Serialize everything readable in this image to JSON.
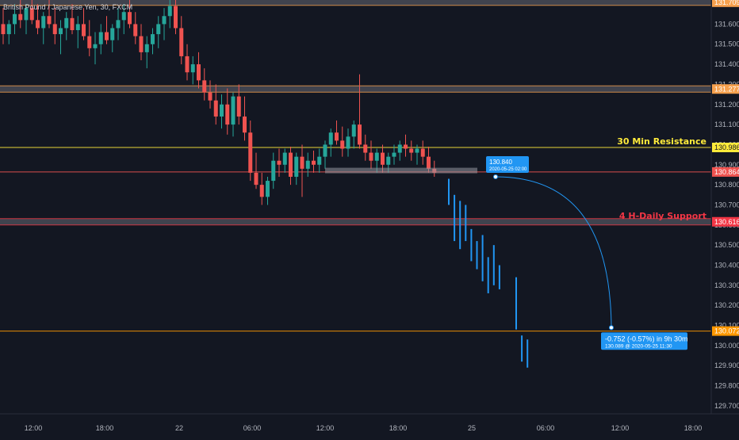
{
  "chart_data": {
    "type": "candlestick",
    "title": "British Pound / Japanese Yen, 30, FXCM",
    "ylim": [
      129.66,
      131.72
    ],
    "y_ticks": [
      "131.600",
      "131.500",
      "131.400",
      "131.300",
      "131.200",
      "131.100",
      "131.000",
      "130.900",
      "130.800",
      "130.700",
      "130.600",
      "130.500",
      "130.400",
      "130.300",
      "130.200",
      "130.100",
      "130.000",
      "129.900",
      "129.800",
      "129.700"
    ],
    "x_ticks": [
      "12:00",
      "18:00",
      "22",
      "06:00",
      "12:00",
      "18:00",
      "25",
      "06:00",
      "12:00",
      "18:00"
    ],
    "grid": false,
    "candles": [
      [
        131.6,
        131.68,
        131.5,
        131.55
      ],
      [
        131.55,
        131.62,
        131.5,
        131.6
      ],
      [
        131.6,
        131.7,
        131.55,
        131.65
      ],
      [
        131.65,
        131.72,
        131.58,
        131.62
      ],
      [
        131.62,
        131.7,
        131.55,
        131.68
      ],
      [
        131.68,
        131.72,
        131.6,
        131.62
      ],
      [
        131.62,
        131.7,
        131.55,
        131.58
      ],
      [
        131.58,
        131.66,
        131.5,
        131.64
      ],
      [
        131.64,
        131.72,
        131.58,
        131.6
      ],
      [
        131.6,
        131.68,
        131.5,
        131.55
      ],
      [
        131.55,
        131.62,
        131.45,
        131.58
      ],
      [
        131.58,
        131.66,
        131.52,
        131.63
      ],
      [
        131.63,
        131.7,
        131.55,
        131.57
      ],
      [
        131.57,
        131.64,
        131.48,
        131.6
      ],
      [
        131.6,
        131.68,
        131.52,
        131.54
      ],
      [
        131.54,
        131.62,
        131.44,
        131.48
      ],
      [
        131.48,
        131.56,
        131.4,
        131.5
      ],
      [
        131.5,
        131.6,
        131.45,
        131.56
      ],
      [
        131.56,
        131.64,
        131.5,
        131.52
      ],
      [
        131.52,
        131.6,
        131.46,
        131.58
      ],
      [
        131.58,
        131.68,
        131.52,
        131.62
      ],
      [
        131.62,
        131.7,
        131.55,
        131.66
      ],
      [
        131.66,
        131.72,
        131.58,
        131.6
      ],
      [
        131.6,
        131.66,
        131.5,
        131.54
      ],
      [
        131.54,
        131.6,
        131.42,
        131.46
      ],
      [
        131.46,
        131.54,
        131.38,
        131.5
      ],
      [
        131.5,
        131.58,
        131.45,
        131.55
      ],
      [
        131.55,
        131.64,
        131.48,
        131.6
      ],
      [
        131.6,
        131.68,
        131.52,
        131.64
      ],
      [
        131.64,
        131.72,
        131.58,
        131.69
      ],
      [
        131.69,
        131.72,
        131.55,
        131.58
      ],
      [
        131.58,
        131.64,
        131.4,
        131.44
      ],
      [
        131.44,
        131.5,
        131.32,
        131.36
      ],
      [
        131.36,
        131.44,
        131.3,
        131.4
      ],
      [
        131.4,
        131.46,
        131.28,
        131.32
      ],
      [
        131.32,
        131.38,
        131.22,
        131.26
      ],
      [
        131.26,
        131.32,
        131.18,
        131.22
      ],
      [
        131.22,
        131.3,
        131.1,
        131.14
      ],
      [
        131.14,
        131.25,
        131.08,
        131.2
      ],
      [
        131.2,
        131.28,
        131.05,
        131.1
      ],
      [
        131.1,
        131.26,
        131.04,
        131.24
      ],
      [
        131.24,
        131.3,
        131.1,
        131.14
      ],
      [
        131.14,
        131.24,
        131.02,
        131.06
      ],
      [
        131.06,
        131.12,
        130.82,
        130.86
      ],
      [
        130.86,
        130.96,
        130.78,
        130.8
      ],
      [
        130.8,
        130.86,
        130.7,
        130.74
      ],
      [
        130.74,
        130.84,
        130.7,
        130.82
      ],
      [
        130.82,
        130.96,
        130.78,
        130.92
      ],
      [
        130.92,
        130.98,
        130.84,
        130.9
      ],
      [
        130.9,
        130.98,
        130.86,
        130.96
      ],
      [
        130.96,
        130.99,
        130.8,
        130.84
      ],
      [
        130.84,
        130.96,
        130.8,
        130.94
      ],
      [
        130.94,
        131.0,
        130.74,
        130.88
      ],
      [
        130.88,
        130.96,
        130.84,
        130.92
      ],
      [
        130.92,
        130.97,
        130.86,
        130.9
      ],
      [
        130.9,
        130.98,
        130.86,
        130.94
      ],
      [
        130.94,
        131.02,
        130.88,
        131.0
      ],
      [
        131.0,
        131.08,
        130.94,
        131.06
      ],
      [
        131.06,
        131.12,
        131.0,
        131.02
      ],
      [
        131.02,
        131.09,
        130.94,
        130.98
      ],
      [
        130.98,
        131.08,
        130.94,
        131.04
      ],
      [
        131.04,
        131.12,
        130.98,
        131.1
      ],
      [
        131.1,
        131.35,
        130.98,
        131.0
      ],
      [
        131.0,
        131.05,
        130.92,
        130.96
      ],
      [
        130.96,
        131.02,
        130.88,
        130.92
      ],
      [
        130.92,
        130.98,
        130.86,
        130.96
      ],
      [
        130.96,
        131.0,
        130.86,
        130.9
      ],
      [
        130.9,
        130.96,
        130.86,
        130.94
      ],
      [
        130.94,
        131.0,
        130.9,
        130.96
      ],
      [
        130.96,
        131.02,
        130.92,
        131.0
      ],
      [
        131.0,
        131.05,
        130.94,
        130.98
      ],
      [
        130.98,
        131.02,
        130.92,
        130.96
      ],
      [
        130.96,
        131.0,
        130.9,
        130.98
      ],
      [
        130.98,
        131.02,
        130.9,
        130.94
      ],
      [
        130.94,
        130.99,
        130.86,
        130.88
      ],
      [
        130.88,
        130.92,
        130.84,
        130.86
      ]
    ],
    "projection_bars": [
      [
        130.83,
        130.7
      ],
      [
        130.75,
        130.52
      ],
      [
        130.72,
        130.48
      ],
      [
        130.7,
        130.52
      ],
      [
        130.58,
        130.42
      ],
      [
        130.52,
        130.38
      ],
      [
        130.55,
        130.32
      ],
      [
        130.44,
        130.26
      ],
      [
        130.5,
        130.3
      ],
      [
        130.4,
        130.28
      ],
      [
        130.34,
        130.08
      ],
      [
        130.05,
        129.92
      ],
      [
        130.03,
        129.89
      ]
    ],
    "levels": [
      {
        "price": 131.709,
        "label": "131.709",
        "color": "#f6a04d",
        "zone": true
      },
      {
        "price": 131.277,
        "label": "131.277",
        "color": "#f6a04d",
        "zone": true
      },
      {
        "price": 130.986,
        "label": "130.986",
        "color": "#ffeb3b",
        "zone": false
      },
      {
        "price": 130.864,
        "label": "130.864",
        "color": "#ef5350",
        "zone": false
      },
      {
        "price": 130.616,
        "label": "130.616",
        "color": "#f23645",
        "zone": true
      },
      {
        "price": 130.072,
        "label": "130.072",
        "color": "#ff9800",
        "zone": false
      }
    ],
    "annotations": {
      "resistance": "30 Min  Resistance",
      "support": "4 H-Daily  Support"
    },
    "measure": {
      "start_price": "130.840",
      "start_time": "2020-05-25 02:00",
      "result": "-0.752 (-0.57%) in 9h 30m",
      "end_detail": "130.089 @ 2020-05-25  11:30"
    },
    "colors": {
      "bull": "#26a69a",
      "bear": "#ef5350",
      "background": "#131722",
      "projection": "#2196f3"
    }
  }
}
